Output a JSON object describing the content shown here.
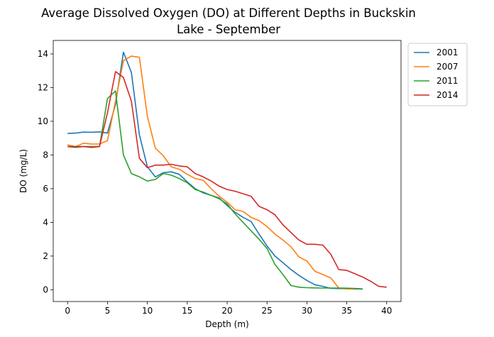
{
  "chart_data": {
    "type": "line",
    "title_lines": [
      "Average Dissolved Oxygen (DO) at Different Depths in Buckskin",
      "Lake - September"
    ],
    "xlabel": "Depth (m)",
    "ylabel": "DO (mg/L)",
    "xlim": [
      -1.8,
      41.8
    ],
    "ylim": [
      -0.7,
      14.8
    ],
    "xticks": [
      0,
      5,
      10,
      15,
      20,
      25,
      30,
      35,
      40
    ],
    "yticks": [
      0,
      2,
      4,
      6,
      8,
      10,
      12,
      14
    ],
    "grid": false,
    "legend_position": "outside-top-right",
    "series": [
      {
        "name": "2001",
        "color": "#1f77b4",
        "points": [
          [
            0,
            9.28
          ],
          [
            1,
            9.3
          ],
          [
            2,
            9.36
          ],
          [
            3,
            9.35
          ],
          [
            4,
            9.37
          ],
          [
            5,
            9.3
          ],
          [
            6,
            11.0
          ],
          [
            7,
            14.1
          ],
          [
            8,
            12.9
          ],
          [
            9,
            9.2
          ],
          [
            10,
            7.3
          ],
          [
            11,
            6.7
          ],
          [
            12,
            6.95
          ],
          [
            13,
            7.0
          ],
          [
            14,
            6.85
          ],
          [
            15,
            6.4
          ],
          [
            16,
            6.0
          ],
          [
            17,
            5.75
          ],
          [
            18,
            5.6
          ],
          [
            19,
            5.45
          ],
          [
            20,
            5.0
          ],
          [
            21,
            4.6
          ],
          [
            22,
            4.3
          ],
          [
            23,
            4.05
          ],
          [
            24,
            3.3
          ],
          [
            25,
            2.6
          ],
          [
            26,
            2.0
          ],
          [
            27,
            1.6
          ],
          [
            28,
            1.2
          ],
          [
            29,
            0.85
          ],
          [
            30,
            0.55
          ],
          [
            31,
            0.3
          ],
          [
            32,
            0.2
          ],
          [
            33,
            0.08
          ],
          [
            34,
            0.07
          ],
          [
            35,
            0.06
          ],
          [
            36,
            0.05
          ],
          [
            37,
            0.04
          ]
        ]
      },
      {
        "name": "2007",
        "color": "#ff7f0e",
        "points": [
          [
            0,
            8.6
          ],
          [
            1,
            8.5
          ],
          [
            2,
            8.7
          ],
          [
            3,
            8.65
          ],
          [
            4,
            8.65
          ],
          [
            5,
            8.85
          ],
          [
            6,
            11.2
          ],
          [
            7,
            13.6
          ],
          [
            8,
            13.87
          ],
          [
            9,
            13.8
          ],
          [
            10,
            10.3
          ],
          [
            11,
            8.4
          ],
          [
            12,
            7.95
          ],
          [
            13,
            7.3
          ],
          [
            14,
            7.15
          ],
          [
            15,
            6.85
          ],
          [
            16,
            6.6
          ],
          [
            17,
            6.5
          ],
          [
            18,
            6.0
          ],
          [
            19,
            5.55
          ],
          [
            20,
            5.2
          ],
          [
            21,
            4.75
          ],
          [
            22,
            4.65
          ],
          [
            23,
            4.3
          ],
          [
            24,
            4.1
          ],
          [
            25,
            3.75
          ],
          [
            26,
            3.3
          ],
          [
            27,
            2.95
          ],
          [
            28,
            2.55
          ],
          [
            29,
            1.95
          ],
          [
            30,
            1.7
          ],
          [
            31,
            1.1
          ],
          [
            32,
            0.9
          ],
          [
            33,
            0.7
          ],
          [
            34,
            0.1
          ],
          [
            35,
            0.05
          ],
          [
            36,
            0.04
          ]
        ]
      },
      {
        "name": "2011",
        "color": "#2ca02c",
        "points": [
          [
            0,
            8.5
          ],
          [
            1,
            8.45
          ],
          [
            2,
            8.5
          ],
          [
            3,
            8.5
          ],
          [
            4,
            8.5
          ],
          [
            5,
            11.35
          ],
          [
            6,
            11.8
          ],
          [
            7,
            8.0
          ],
          [
            8,
            6.9
          ],
          [
            9,
            6.7
          ],
          [
            10,
            6.45
          ],
          [
            11,
            6.55
          ],
          [
            12,
            6.9
          ],
          [
            13,
            6.8
          ],
          [
            14,
            6.6
          ],
          [
            15,
            6.35
          ],
          [
            16,
            5.95
          ],
          [
            17,
            5.8
          ],
          [
            18,
            5.6
          ],
          [
            19,
            5.4
          ],
          [
            20,
            5.1
          ],
          [
            21,
            4.5
          ],
          [
            22,
            4.0
          ],
          [
            23,
            3.5
          ],
          [
            24,
            3.0
          ],
          [
            25,
            2.45
          ],
          [
            26,
            1.5
          ],
          [
            27,
            0.9
          ],
          [
            28,
            0.25
          ],
          [
            29,
            0.15
          ],
          [
            30,
            0.12
          ],
          [
            31,
            0.11
          ],
          [
            32,
            0.1
          ],
          [
            33,
            0.1
          ],
          [
            34,
            0.1
          ],
          [
            35,
            0.09
          ],
          [
            36,
            0.08
          ],
          [
            37,
            0.05
          ]
        ]
      },
      {
        "name": "2014",
        "color": "#d62728",
        "points": [
          [
            0,
            8.5
          ],
          [
            1,
            8.5
          ],
          [
            2,
            8.5
          ],
          [
            3,
            8.45
          ],
          [
            4,
            8.5
          ],
          [
            5,
            10.5
          ],
          [
            6,
            12.95
          ],
          [
            7,
            12.6
          ],
          [
            8,
            11.2
          ],
          [
            9,
            7.8
          ],
          [
            10,
            7.25
          ],
          [
            11,
            7.4
          ],
          [
            12,
            7.4
          ],
          [
            13,
            7.45
          ],
          [
            14,
            7.35
          ],
          [
            15,
            7.3
          ],
          [
            16,
            6.9
          ],
          [
            17,
            6.7
          ],
          [
            18,
            6.45
          ],
          [
            19,
            6.15
          ],
          [
            20,
            5.95
          ],
          [
            21,
            5.85
          ],
          [
            22,
            5.7
          ],
          [
            23,
            5.55
          ],
          [
            24,
            4.95
          ],
          [
            25,
            4.75
          ],
          [
            26,
            4.45
          ],
          [
            27,
            3.85
          ],
          [
            28,
            3.4
          ],
          [
            29,
            2.95
          ],
          [
            30,
            2.7
          ],
          [
            31,
            2.7
          ],
          [
            32,
            2.65
          ],
          [
            33,
            2.1
          ],
          [
            34,
            1.2
          ],
          [
            35,
            1.15
          ],
          [
            36,
            0.95
          ],
          [
            37,
            0.75
          ],
          [
            38,
            0.5
          ],
          [
            39,
            0.2
          ],
          [
            40,
            0.15
          ]
        ]
      }
    ]
  }
}
